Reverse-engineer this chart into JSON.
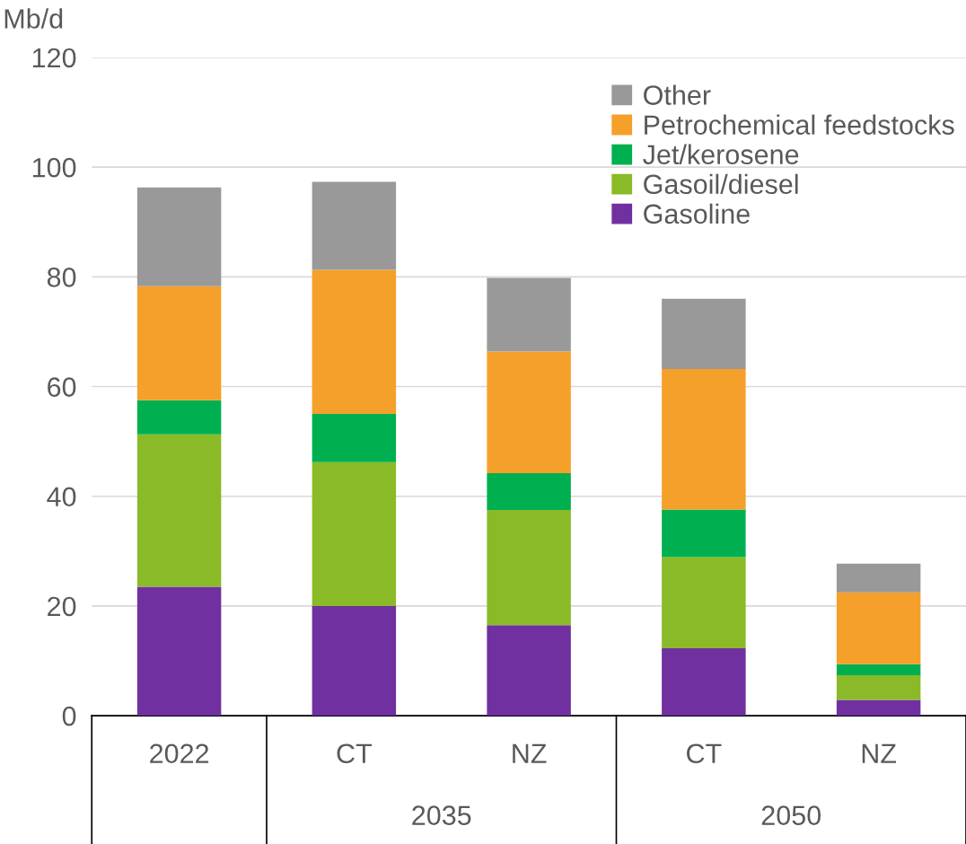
{
  "chart_data": {
    "type": "bar",
    "stacked": true,
    "ylabel": "Mb/d",
    "categories": [
      "2022",
      "CT",
      "NZ",
      "CT",
      "NZ"
    ],
    "series": [
      {
        "name": "Gasoline",
        "color": "#7030a0",
        "values": [
          23.5,
          20.0,
          16.5,
          12.3,
          2.9
        ]
      },
      {
        "name": "Gasoil/diesel",
        "color": "#8aba27",
        "values": [
          27.8,
          26.2,
          21.0,
          16.6,
          4.5
        ]
      },
      {
        "name": "Jet/kerosene",
        "color": "#00b050",
        "values": [
          6.2,
          8.8,
          6.7,
          8.7,
          2.0
        ]
      },
      {
        "name": "Petrochemical feedstocks",
        "color": "#f5a02a",
        "values": [
          20.8,
          26.3,
          22.2,
          25.6,
          13.1
        ]
      },
      {
        "name": "Other",
        "color": "#999999",
        "values": [
          18.0,
          16.0,
          13.4,
          12.8,
          5.2
        ]
      }
    ],
    "annotations": [
      "2035",
      "2050"
    ],
    "ylim": [
      0,
      120
    ],
    "yticks": [
      0,
      20,
      40,
      60,
      80,
      100,
      120
    ],
    "grid": "y",
    "legend": "top right"
  }
}
